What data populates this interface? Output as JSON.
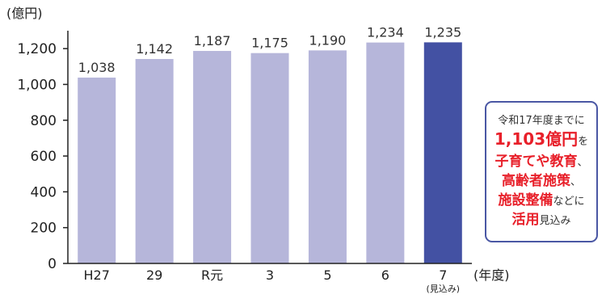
{
  "chart_data": {
    "type": "bar",
    "ylabel": "(億円)",
    "xlabel": "(年度)",
    "categories": [
      "H27",
      "29",
      "R元",
      "3",
      "5",
      "6",
      "7"
    ],
    "category_sublabels": [
      "",
      "",
      "",
      "",
      "",
      "",
      "(見込み)"
    ],
    "values": [
      1038,
      1142,
      1187,
      1175,
      1190,
      1234,
      1235
    ],
    "value_labels": [
      "1,038",
      "1,142",
      "1,187",
      "1,175",
      "1,190",
      "1,234",
      "1,235"
    ],
    "highlight_index": 6,
    "ylim": [
      0,
      1300
    ],
    "yticks": [
      0,
      200,
      400,
      600,
      800,
      1000,
      1200
    ],
    "ytick_labels": [
      "0",
      "200",
      "400",
      "600",
      "800",
      "1,000",
      "1,200"
    ],
    "colors": {
      "bar": "#b6b6da",
      "highlight": "#4351a3",
      "axis": "#222222"
    },
    "grid": false
  },
  "callout": {
    "line1": "令和17年度までに",
    "amount": "1,103億円",
    "amount_suffix": "を",
    "item1": "子育てや教育",
    "item1_suffix": "、",
    "item2": "高齢者施策",
    "item2_suffix": "、",
    "item3": "施設整備",
    "item3_suffix": "などに",
    "item4": "活用",
    "item4_suffix": "見込み",
    "border_color": "#4a57a4",
    "emphasis_color": "#e8202a"
  }
}
